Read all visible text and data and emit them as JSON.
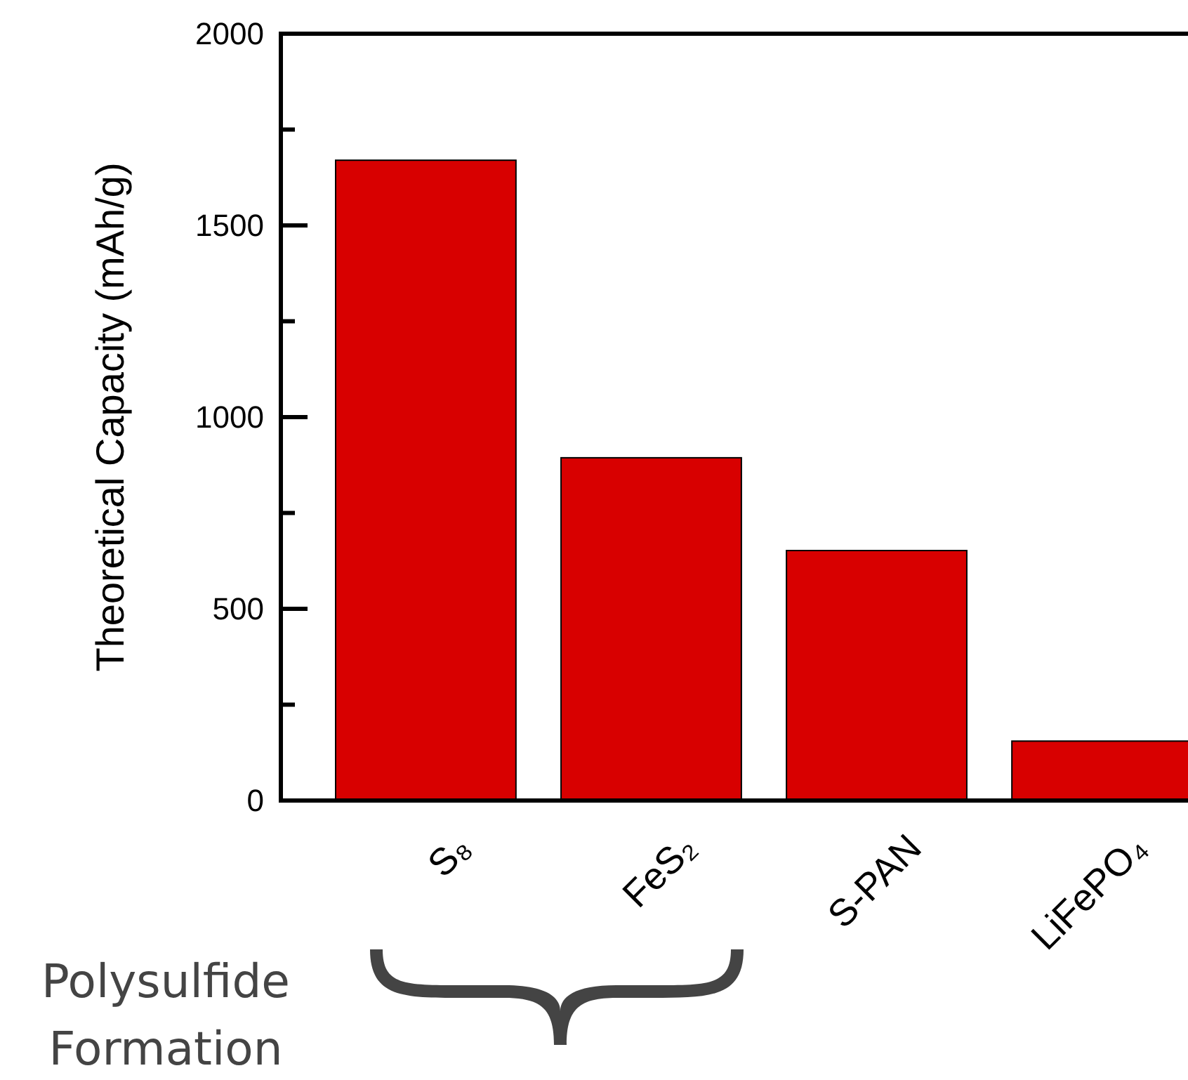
{
  "chart_data": {
    "type": "bar",
    "ylabel": "Theoretical Capacity (mAh/g)",
    "categories": [
      "S₈",
      "FeS₂",
      "S-PAN",
      "LiFePO₄"
    ],
    "values": [
      1670,
      894,
      652,
      155
    ],
    "color": "#d80000",
    "ylim": [
      0,
      2000
    ],
    "yticks": [
      0,
      {
        "value": 250,
        "label": null
      },
      500,
      {
        "value": 750,
        "label": null
      },
      1000,
      {
        "value": 1250,
        "label": null
      },
      1500,
      {
        "value": 1750,
        "label": null
      },
      2000
    ],
    "grid": false,
    "annotations": [
      "Polysulfide Formation"
    ]
  }
}
